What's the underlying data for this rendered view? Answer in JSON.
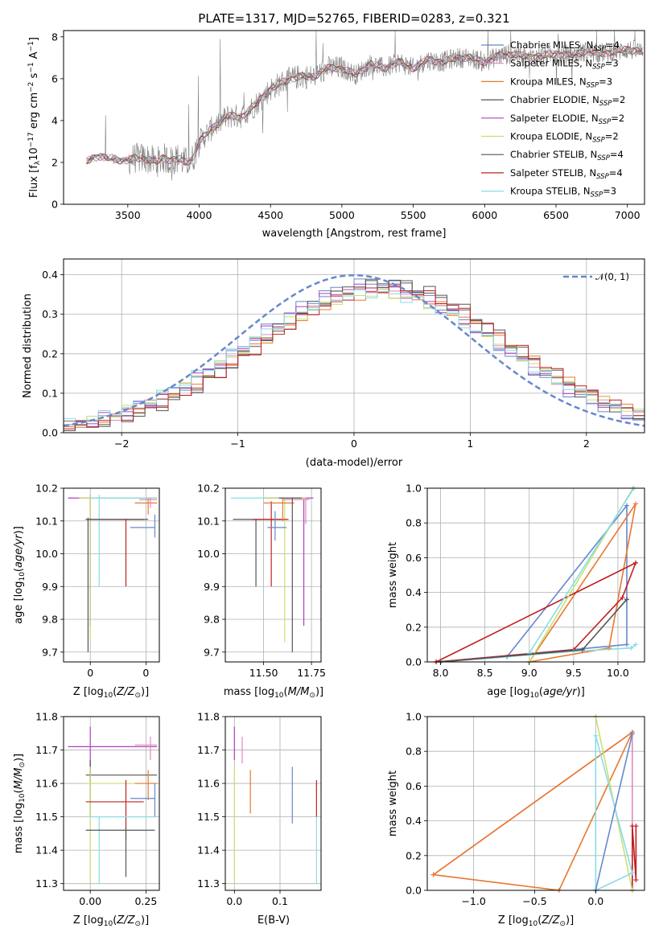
{
  "figure": {
    "title": "PLATE=1317, MJD=52765, FIBERID=0283, z=0.321"
  },
  "colors": {
    "chabrier_miles": "#6688cc",
    "salpeter_miles": "#e088c0",
    "kroupa_miles": "#e87830",
    "chabrier_elodie": "#555555",
    "salpeter_elodie": "#b040c0",
    "kroupa_elodie": "#c8e070",
    "chabrier_stelib": "#555555",
    "salpeter_stelib": "#c02020",
    "kroupa_stelib": "#88dde8",
    "data": "#808080"
  },
  "chart_data": [
    {
      "id": "spectrum",
      "type": "line",
      "xlabel": "wavelength [Angstrom, rest frame]",
      "ylabel": "Flux [f_λ10^-17 erg cm^-2 s^-1 A^-1]",
      "xlim": [
        3050,
        7120
      ],
      "ylim": [
        0,
        8.3
      ],
      "xticks": [
        3500,
        4000,
        4500,
        5000,
        5500,
        6000,
        6500,
        7000
      ],
      "yticks": [
        0,
        2,
        4,
        6,
        8
      ],
      "grid": false,
      "legend_placement": "right",
      "legend": [
        {
          "label": "Chabrier MILES, N_SSP=4",
          "color_key": "chabrier_miles"
        },
        {
          "label": "Salpeter MILES, N_SSP=3",
          "color_key": "salpeter_miles"
        },
        {
          "label": "Kroupa MILES, N_SSP=3",
          "color_key": "kroupa_miles"
        },
        {
          "label": "Chabrier ELODIE, N_SSP=2",
          "color_key": "chabrier_elodie"
        },
        {
          "label": "Salpeter ELODIE, N_SSP=2",
          "color_key": "salpeter_elodie"
        },
        {
          "label": "Kroupa ELODIE, N_SSP=2",
          "color_key": "kroupa_elodie"
        },
        {
          "label": "Chabrier STELIB, N_SSP=4",
          "color_key": "chabrier_stelib"
        },
        {
          "label": "Salpeter STELIB, N_SSP=4",
          "color_key": "salpeter_stelib"
        },
        {
          "label": "Kroupa STELIB, N_SSP=3",
          "color_key": "kroupa_stelib"
        }
      ],
      "model_continuum": {
        "x": [
          3200,
          3250,
          3300,
          3350,
          3400,
          3450,
          3500,
          3550,
          3600,
          3650,
          3700,
          3750,
          3800,
          3850,
          3900,
          3950,
          4000,
          4100,
          4200,
          4300,
          4400,
          4500,
          4600,
          4700,
          4800,
          4900,
          5000,
          5100,
          5200,
          5300,
          5400,
          5500,
          5600,
          5700,
          5800,
          5900,
          6000,
          6100,
          6200,
          6300,
          6400,
          6500,
          6600,
          6700,
          6800,
          6900,
          7000,
          7100
        ],
        "y": [
          2.0,
          2.2,
          2.3,
          2.2,
          2.2,
          2.1,
          2.1,
          2.2,
          2.2,
          2.15,
          2.0,
          2.2,
          2.1,
          2.2,
          2.0,
          2.1,
          3.0,
          3.7,
          4.2,
          4.2,
          4.8,
          5.5,
          5.9,
          6.1,
          6.1,
          6.5,
          6.5,
          6.2,
          6.7,
          6.5,
          6.8,
          6.5,
          6.9,
          6.8,
          7.0,
          7.0,
          6.8,
          7.1,
          7.2,
          7.0,
          7.1,
          7.2,
          7.1,
          7.3,
          7.2,
          7.3,
          7.4,
          7.3
        ]
      }
    },
    {
      "id": "residuals",
      "type": "line",
      "xlabel": "(data-model)/error",
      "ylabel": "Normed distribution",
      "xlim": [
        -2.5,
        2.5
      ],
      "ylim": [
        0,
        0.44
      ],
      "xticks": [
        -2,
        -1,
        0,
        1,
        2
      ],
      "yticks": [
        0.0,
        0.1,
        0.2,
        0.3,
        0.4
      ],
      "grid": true,
      "legend_placement": "top-right",
      "legend_label": "𝒩(0, 1)",
      "bin_width": 0.1,
      "bin_start": -2.5
    },
    {
      "id": "age_vs_Z",
      "type": "scatter",
      "xlabel": "Z [log10(Z/Z⊙)]",
      "ylabel": "age [log10(age/yr)]",
      "xlim": [
        -0.12,
        0.31
      ],
      "ylim": [
        9.67,
        10.2
      ],
      "xticks": [
        0.0,
        0.25
      ],
      "yticks": [
        9.7,
        9.8,
        9.9,
        10.0,
        10.1,
        10.2
      ],
      "grid": true
    },
    {
      "id": "age_vs_mass",
      "type": "scatter",
      "xlabel": "mass [log10(M/M⊙)]",
      "ylabel": "",
      "xlim": [
        11.3,
        11.8
      ],
      "ylim": [
        9.67,
        10.2
      ],
      "xticks": [
        11.5,
        11.75
      ],
      "yticks": [
        9.7,
        9.8,
        9.9,
        10.0,
        10.1,
        10.2
      ],
      "grid": true
    },
    {
      "id": "mass_weight_vs_age",
      "type": "line",
      "xlabel": "age [log10(age/yr)]",
      "ylabel": "mass weight",
      "xlim": [
        7.85,
        10.3
      ],
      "ylim": [
        0,
        1.0
      ],
      "xticks": [
        8.0,
        8.5,
        9.0,
        9.5,
        10.0
      ],
      "yticks": [
        0.0,
        0.2,
        0.4,
        0.6,
        0.8,
        1.0
      ],
      "grid": true,
      "series": [
        {
          "color_key": "chabrier_miles",
          "x": [
            8.0,
            8.75,
            10.1,
            10.1,
            8.0
          ],
          "y": [
            0.0,
            0.03,
            0.9,
            0.1,
            0.0
          ]
        },
        {
          "color_key": "kroupa_miles",
          "x": [
            9.0,
            9.9,
            10.2,
            9.0
          ],
          "y": [
            0.0,
            0.08,
            0.91,
            0.0
          ]
        },
        {
          "color_key": "salpeter_stelib",
          "x": [
            7.95,
            9.5,
            10.05,
            10.2,
            7.95
          ],
          "y": [
            0.0,
            0.07,
            0.37,
            0.57,
            0.0
          ]
        },
        {
          "color_key": "kroupa_elodie",
          "x": [
            9.0,
            10.17,
            9.0
          ],
          "y": [
            0.0,
            1.0,
            0.0
          ]
        },
        {
          "color_key": "kroupa_stelib",
          "x": [
            9.0,
            10.18,
            9.0
          ],
          "y": [
            0.05,
            1.0,
            0.05
          ]
        },
        {
          "color_key": "kroupa_stelib",
          "x": [
            8.0,
            9.5,
            10.15,
            10.2
          ],
          "y": [
            0.0,
            0.06,
            0.08,
            0.1
          ]
        },
        {
          "color_key": "chabrier_stelib",
          "x": [
            8.0,
            9.6,
            10.1
          ],
          "y": [
            0.0,
            0.07,
            0.36
          ]
        }
      ]
    },
    {
      "id": "mass_vs_Z",
      "type": "scatter",
      "xlabel": "Z [log10(Z/Z⊙)]",
      "ylabel": "mass [log10(M/M⊙)]",
      "xlim": [
        -0.12,
        0.31
      ],
      "ylim": [
        11.28,
        11.8
      ],
      "xticks": [
        0.0,
        0.25
      ],
      "yticks": [
        11.3,
        11.4,
        11.5,
        11.6,
        11.7,
        11.8
      ],
      "grid": true
    },
    {
      "id": "mass_vs_EBV",
      "type": "scatter",
      "xlabel": "E(B-V)",
      "ylabel": "",
      "xlim": [
        -0.02,
        0.19
      ],
      "ylim": [
        11.28,
        11.8
      ],
      "xticks": [
        0.0,
        0.1
      ],
      "yticks": [
        11.3,
        11.4,
        11.5,
        11.6,
        11.7,
        11.8
      ],
      "grid": true
    },
    {
      "id": "mass_weight_vs_Z",
      "type": "line",
      "xlabel": "Z [log10(Z/Z⊙)]",
      "ylabel": "mass weight",
      "xlim": [
        -1.38,
        0.4
      ],
      "ylim": [
        0,
        1.0
      ],
      "xticks": [
        -1.0,
        -0.5,
        0.0
      ],
      "yticks": [
        0.0,
        0.2,
        0.4,
        0.6,
        0.8,
        1.0
      ],
      "grid": true,
      "series": [
        {
          "color_key": "salpeter_miles",
          "x": [
            -1.33,
            0.3,
            0.3
          ],
          "y": [
            0.09,
            0.91,
            0.0
          ]
        },
        {
          "color_key": "kroupa_miles",
          "x": [
            -1.33,
            -0.3,
            0.3,
            -1.33
          ],
          "y": [
            0.09,
            0.0,
            0.91,
            0.09
          ]
        },
        {
          "color_key": "salpeter_stelib",
          "x": [
            0.3,
            0.3,
            0.33,
            0.33
          ],
          "y": [
            0.0,
            0.37,
            0.06,
            0.37
          ]
        },
        {
          "color_key": "kroupa_elodie",
          "x": [
            0.0,
            0.3,
            0.0
          ],
          "y": [
            1.0,
            0.0,
            1.0
          ]
        },
        {
          "color_key": "kroupa_stelib",
          "x": [
            0.0,
            0.3,
            0.0,
            0.0
          ],
          "y": [
            0.0,
            0.1,
            0.89,
            0.0
          ]
        },
        {
          "color_key": "chabrier_miles",
          "x": [
            0.0,
            0.3
          ],
          "y": [
            0.0,
            0.9
          ]
        }
      ]
    }
  ]
}
